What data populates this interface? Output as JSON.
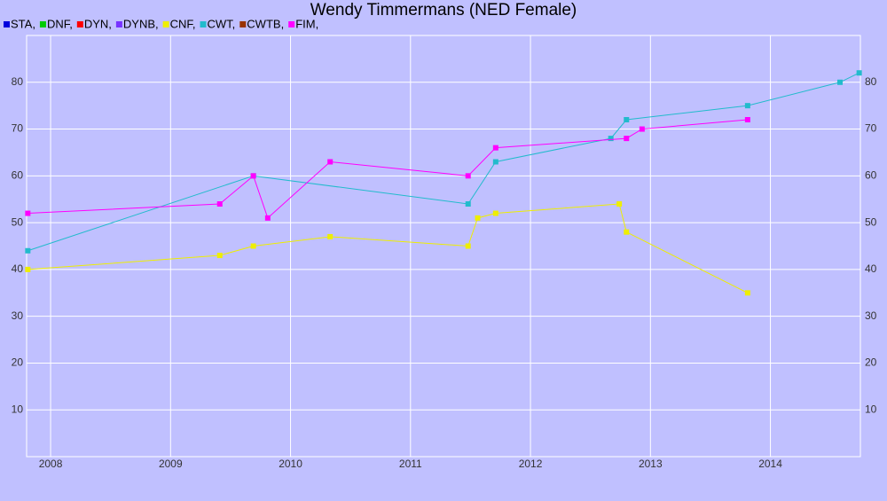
{
  "chart_data": {
    "type": "line",
    "title": "Wendy Timmermans (NED Female)",
    "xlim": [
      2007.8,
      2014.75
    ],
    "xticks": [
      2008,
      2009,
      2010,
      2011,
      2012,
      2013,
      2014
    ],
    "ylim": [
      0,
      90
    ],
    "yticks": [
      10,
      20,
      30,
      40,
      50,
      60,
      70,
      80
    ],
    "grid": true,
    "series": [
      {
        "name": "STA,",
        "color": "#0000dd",
        "x": [],
        "values": []
      },
      {
        "name": "DNF,",
        "color": "#00cc00",
        "x": [],
        "values": []
      },
      {
        "name": "DYN,",
        "color": "#ff0000",
        "x": [],
        "values": []
      },
      {
        "name": "DYNB,",
        "color": "#7733ff",
        "x": [],
        "values": []
      },
      {
        "name": "CNF,",
        "color": "#eeee00",
        "x": [
          2007.81,
          2009.41,
          2009.69,
          2010.33,
          2011.48,
          2011.56,
          2011.71,
          2012.74,
          2012.8,
          2013.81
        ],
        "values": [
          40,
          43,
          45,
          47,
          45,
          51,
          52,
          54,
          48,
          35
        ]
      },
      {
        "name": "CWT,",
        "color": "#22bbcc",
        "x": [
          2007.81,
          2009.69,
          2011.48,
          2011.71,
          2012.67,
          2012.8,
          2013.81,
          2014.58,
          2014.74
        ],
        "values": [
          44,
          60,
          54,
          63,
          68,
          72,
          75,
          80,
          82
        ]
      },
      {
        "name": "CWTB,",
        "color": "#993300",
        "x": [],
        "values": []
      },
      {
        "name": "FIM,",
        "color": "#ff00ff",
        "x": [
          2007.81,
          2009.41,
          2009.69,
          2009.81,
          2010.33,
          2011.48,
          2011.71,
          2012.8,
          2012.93,
          2013.81
        ],
        "values": [
          52,
          54,
          60,
          51,
          63,
          60,
          66,
          68,
          70,
          72
        ]
      }
    ]
  }
}
